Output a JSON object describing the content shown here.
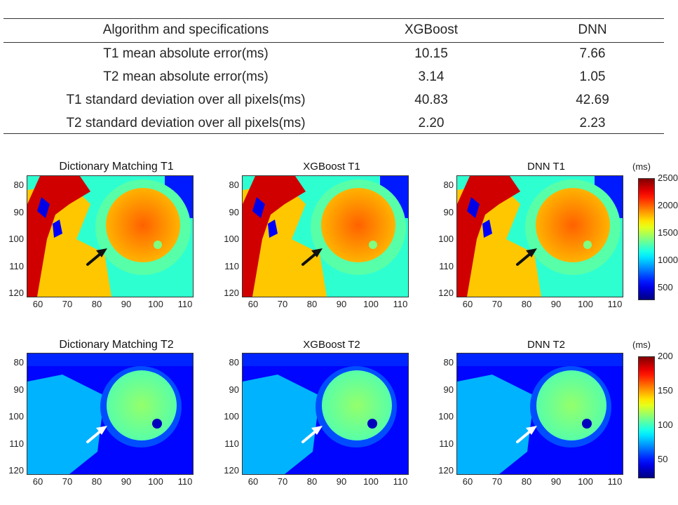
{
  "table": {
    "header": [
      "Algorithm and specifications",
      "XGBoost",
      "DNN"
    ],
    "rows": [
      [
        "T1 mean absolute error(ms)",
        "10.15",
        "7.66"
      ],
      [
        "T2 mean absolute error(ms)",
        "3.14",
        "1.05"
      ],
      [
        "T1 standard deviation over all pixels(ms)",
        "40.83",
        "42.69"
      ],
      [
        "T2 standard deviation over all pixels(ms)",
        "2.20",
        "2.23"
      ]
    ]
  },
  "maps": {
    "t1": {
      "titles": [
        "Dictionary Matching T1",
        "XGBoost T1",
        "DNN T1"
      ],
      "unit": "(ms)",
      "colorbar_ticks": [
        "2500",
        "2000",
        "1500",
        "1000",
        "500"
      ],
      "colorbar_range": [
        300,
        2500
      ],
      "arrow_color": "#111111"
    },
    "t2": {
      "titles": [
        "Dictionary Matching T2",
        "XGBoost T2",
        "DNN T2"
      ],
      "unit": "(ms)",
      "colorbar_ticks": [
        "200",
        "150",
        "100",
        "50"
      ],
      "colorbar_range": [
        25,
        200
      ],
      "arrow_color": "#ffffff"
    },
    "y_ticks": [
      "80",
      "90",
      "100",
      "110",
      "120"
    ],
    "x_ticks": [
      "60",
      "70",
      "80",
      "90",
      "100",
      "110"
    ],
    "colormap": "jet"
  }
}
